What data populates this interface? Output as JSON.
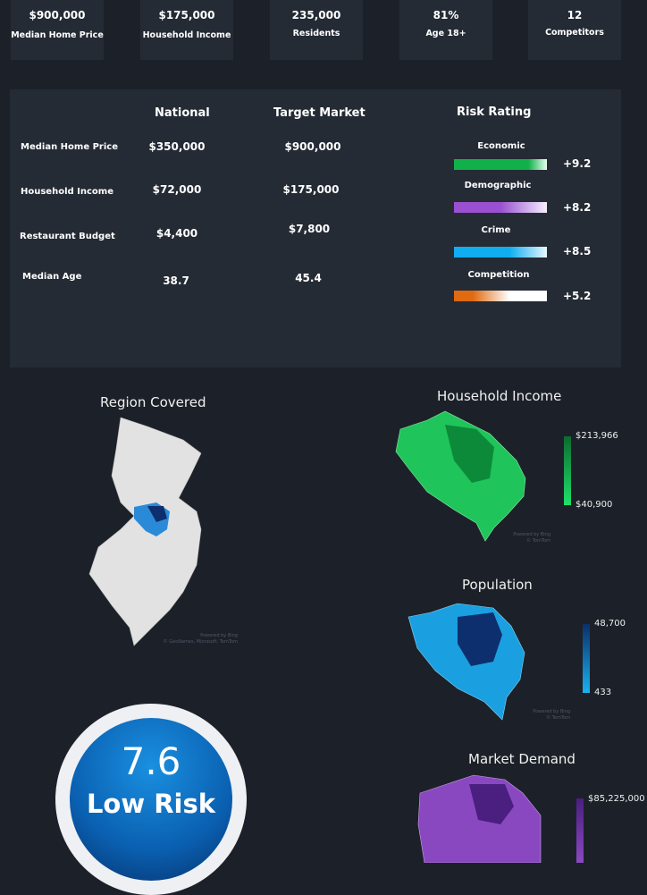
{
  "kpis": [
    {
      "value": "$900,000",
      "label": "Median Home Price"
    },
    {
      "value": "$175,000",
      "label": "Household Income"
    },
    {
      "value": "235,000",
      "label": "Residents"
    },
    {
      "value": "81%",
      "label": "Age 18+"
    },
    {
      "value": "12",
      "label": "Competitors"
    }
  ],
  "comparison": {
    "headers": {
      "national": "National",
      "target": "Target Market",
      "risk": "Risk Rating"
    },
    "rows": [
      {
        "label": "Median Home Price",
        "national": "$350,000",
        "target": "$900,000"
      },
      {
        "label": "Household Income",
        "national": "$72,000",
        "target": "$175,000"
      },
      {
        "label": "Restaurant Budget",
        "national": "$4,400",
        "target": "$7,800"
      },
      {
        "label": "Median Age",
        "national": "38.7",
        "target": "45.4"
      }
    ],
    "risks": [
      {
        "label": "Economic",
        "score": "+9.2",
        "color": "#12b04a"
      },
      {
        "label": "Demographic",
        "score": "+8.2",
        "color": "#9a50d0"
      },
      {
        "label": "Crime",
        "score": "+8.5",
        "color": "#10aef0"
      },
      {
        "label": "Competition",
        "score": "+5.2",
        "color": "#e06a10"
      }
    ]
  },
  "maps": {
    "region": {
      "title": "Region Covered",
      "watermark": "Powered by Bing\n© GeoNames, Microsoft, TomTom"
    },
    "income": {
      "title": "Household Income",
      "max": "$213,966",
      "min": "$40,900",
      "watermark": "Powered by Bing\n© TomTom",
      "color": "#1fc45a"
    },
    "population": {
      "title": "Population",
      "max": "48,700",
      "min": "433",
      "watermark": "Powered by Bing\n© TomTom",
      "color": "#1aa0e0"
    },
    "demand": {
      "title": "Market Demand",
      "max": "$85,225,000",
      "color": "#8a48c0"
    }
  },
  "risk_score": {
    "value": "7.6",
    "label": "Low Risk"
  }
}
